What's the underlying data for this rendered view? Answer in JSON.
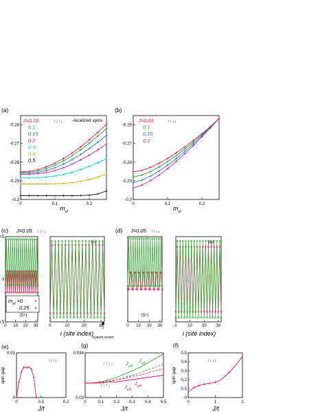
{
  "chart_data": [
    {
      "id": "a",
      "type": "line",
      "panel_label": "(a)",
      "xlabel": "m",
      "xlabel_sub": "el",
      "xlim": [
        0,
        0.25
      ],
      "ylim": [
        -0.3,
        -0.255
      ],
      "xticks": [
        "0",
        "0.1",
        "0.2"
      ],
      "yticks": [
        "-0.26",
        "-0.27",
        "-0.28",
        "-0.29",
        "-0.3"
      ],
      "legend_prefix": "J=",
      "annotation": "↑↓↑↓",
      "annotation_note": "localized spins",
      "x": [
        0,
        0.025,
        0.05,
        0.075,
        0.1,
        0.125,
        0.15,
        0.175,
        0.2,
        0.225,
        0.25
      ],
      "series": [
        {
          "name": "0.05",
          "color": "#e8174e",
          "values": [
            -0.2852,
            -0.2849,
            -0.284,
            -0.2825,
            -0.2805,
            -0.278,
            -0.275,
            -0.2717,
            -0.268,
            -0.264,
            -0.2597
          ]
        },
        {
          "name": "0.1",
          "color": "#2ca02c",
          "values": [
            -0.2856,
            -0.2854,
            -0.2847,
            -0.2834,
            -0.2816,
            -0.2793,
            -0.2765,
            -0.2733,
            -0.2698,
            -0.266,
            -0.262
          ]
        },
        {
          "name": "0.15",
          "color": "#1f77d4",
          "values": [
            -0.2861,
            -0.286,
            -0.2855,
            -0.2845,
            -0.283,
            -0.281,
            -0.2786,
            -0.2758,
            -0.2727,
            -0.2693,
            -0.2657
          ]
        },
        {
          "name": "0.2",
          "color": "#c020c0",
          "values": [
            -0.2866,
            -0.2865,
            -0.2862,
            -0.2856,
            -0.2845,
            -0.283,
            -0.2811,
            -0.2788,
            -0.2762,
            -0.2733,
            -0.2703
          ]
        },
        {
          "name": "0.3",
          "color": "#00c8d8",
          "values": [
            -0.2884,
            -0.2884,
            -0.2883,
            -0.288,
            -0.2874,
            -0.2866,
            -0.2855,
            -0.284,
            -0.2823,
            -0.2803,
            -0.2782
          ]
        },
        {
          "name": "0.4",
          "color": "#d4a000",
          "values": [
            -0.2917,
            -0.2917,
            -0.2917,
            -0.2917,
            -0.2916,
            -0.2914,
            -0.291,
            -0.2903,
            -0.2893,
            -0.288,
            -0.2862
          ]
        },
        {
          "name": "0.5",
          "color": "#000000",
          "values": [
            -0.298,
            -0.298,
            -0.298,
            -0.298,
            -0.298,
            -0.298,
            -0.298,
            -0.2979,
            -0.2977,
            -0.297,
            -0.2955
          ]
        }
      ]
    },
    {
      "id": "b",
      "type": "line",
      "panel_label": "(b)",
      "xlabel": "m",
      "xlabel_sub": "el",
      "xlim": [
        0,
        0.25
      ],
      "ylim": [
        -0.3,
        -0.255
      ],
      "xticks": [
        "0",
        "0.1",
        "0.2"
      ],
      "yticks": [
        "-0.26",
        "-0.27",
        "-0.28",
        "-0.29",
        "-0.3"
      ],
      "legend_prefix": "J=",
      "annotation": "↑↑↓↓",
      "x": [
        0,
        0.025,
        0.05,
        0.075,
        0.1,
        0.125,
        0.15,
        0.175,
        0.2,
        0.225,
        0.25
      ],
      "series": [
        {
          "name": "0.05",
          "color": "#e8174e",
          "values": [
            -0.2852,
            -0.2844,
            -0.2828,
            -0.2806,
            -0.278,
            -0.275,
            -0.2718,
            -0.2683,
            -0.2647,
            -0.2608,
            -0.2566
          ]
        },
        {
          "name": "0.1",
          "color": "#2ca02c",
          "values": [
            -0.288,
            -0.2869,
            -0.2851,
            -0.2826,
            -0.2797,
            -0.2765,
            -0.2729,
            -0.2692,
            -0.2652,
            -0.261,
            -0.2566
          ]
        },
        {
          "name": "0.15",
          "color": "#1f77d4",
          "values": [
            -0.291,
            -0.2896,
            -0.2875,
            -0.2848,
            -0.2816,
            -0.2781,
            -0.2742,
            -0.2701,
            -0.2658,
            -0.2613,
            -0.2566
          ]
        },
        {
          "name": "0.2",
          "color": "#c020c0",
          "values": [
            -0.294,
            -0.2923,
            -0.2899,
            -0.2869,
            -0.2835,
            -0.2797,
            -0.2755,
            -0.2711,
            -0.2664,
            -0.2616,
            -0.2566
          ]
        }
      ]
    },
    {
      "id": "c",
      "type": "line",
      "panel_label": "(c)",
      "title_text": "J=0.05",
      "annotation": "↑↓↑↓",
      "xlabel": "i (site index)",
      "xlim": [
        0,
        32
      ],
      "xticks": [
        "0",
        "10",
        "20",
        "30"
      ],
      "left": {
        "ylim": [
          -0.5,
          0.5
        ],
        "yticks": [
          "0.5",
          "0",
          "-0.5"
        ],
        "label": "⟨Sᶻ⟩",
        "series": [
          {
            "name": "m_el=0",
            "color": "#e8174e",
            "amp": 0.125,
            "center": -0.03,
            "period": 2
          },
          {
            "name": "m_el=0.25",
            "color": "#2ca02c",
            "amp": 0.27,
            "center": 0.2,
            "period": 2
          }
        ]
      },
      "right": {
        "ylim": [
          0,
          1
        ],
        "label": "⟨n⟩",
        "series": [
          {
            "name": "m_el=0",
            "color": "#e8174e",
            "amp": 0.4,
            "center": 0.5,
            "period": 2
          },
          {
            "name": "m_el=0.25",
            "color": "#2ca02c",
            "amp": 0.45,
            "center": 0.5,
            "period": 2
          }
        ]
      },
      "legend": {
        "label_main": "m",
        "label_sub": "el",
        "rows": [
          {
            "text": "=0",
            "mark": "+",
            "color": "#e8174e"
          },
          {
            "text": "0.25",
            "mark": "×",
            "color": "#2ca02c"
          }
        ]
      },
      "center_note": "system center"
    },
    {
      "id": "d",
      "type": "line",
      "panel_label": "(d)",
      "title_text": "J=0.05",
      "annotation": "↑↑↓↓",
      "xlabel": "i (site index)",
      "xlim": [
        0,
        32
      ],
      "xticks": [
        "0",
        "10",
        "20",
        "30"
      ],
      "left": {
        "ylim": [
          -0.5,
          0.5
        ],
        "label": "⟨Sᶻ⟩",
        "series": [
          {
            "name": "m_el=0",
            "color": "#e8174e",
            "amp": 0.1,
            "center": -0.02,
            "period": 4
          },
          {
            "name": "m_el=0.25",
            "color": "#2ca02c",
            "amp": 0.28,
            "center": 0.2,
            "period": 2
          }
        ]
      },
      "right": {
        "ylim": [
          0,
          1
        ],
        "label": "⟨n⟩",
        "series": [
          {
            "name": "m_el=0",
            "color": "#e8174e",
            "amp": 0.38,
            "center": 0.5,
            "period": 2
          },
          {
            "name": "m_el=0.25",
            "color": "#2ca02c",
            "amp": 0.45,
            "center": 0.5,
            "period": 2
          }
        ]
      }
    },
    {
      "id": "e",
      "type": "line",
      "panel_label": "(e)",
      "xlabel": "J/t",
      "ylabel": "spin gap",
      "xlim": [
        0,
        0.2
      ],
      "ylim": [
        0,
        0.01
      ],
      "xticks": [
        "0",
        "0.1",
        "0.2"
      ],
      "yticks": [
        "0.01",
        "0"
      ],
      "annotation": "↑↓↑↓",
      "x": [
        0,
        0.01,
        0.02,
        0.03,
        0.04,
        0.05,
        0.06,
        0.07,
        0.08
      ],
      "series": [
        {
          "name": "",
          "color": "#e8174e",
          "values": [
            0,
            0.0035,
            0.0058,
            0.0068,
            0.0067,
            0.0068,
            0.0064,
            0.0045,
            0
          ]
        }
      ]
    },
    {
      "id": "g",
      "type": "line",
      "panel_label": "(g)",
      "xlabel": "J/t",
      "xlim": [
        0,
        0.5
      ],
      "ylim": [
        0.03,
        0.034
      ],
      "xticks": [
        "0",
        "0.1",
        "0.2",
        "0.3",
        "0.4",
        "0.5"
      ],
      "yticks": [
        "0.034",
        "0.03"
      ],
      "labels": [
        {
          "text": "↑↑↓↓",
          "color": "#2ca02c"
        },
        {
          "text": "J",
          "sub": "eff",
          "color": "#2ca02c"
        },
        {
          "text": "J",
          "sub": "eff",
          "color": "#2ca02c"
        },
        {
          "text": "↑↓↑↓",
          "color": "#e8174e"
        },
        {
          "text": "J",
          "sub": "eff",
          "color": "#e8174e"
        },
        {
          "text": "J",
          "sub": "eff",
          "color": "#e8174e"
        }
      ],
      "x": [
        0,
        0.05,
        0.1,
        0.15,
        0.2,
        0.25,
        0.3,
        0.35,
        0.4,
        0.45,
        0.5
      ],
      "series": [
        {
          "name": "upper-green",
          "color": "#2ca02c",
          "dash": false,
          "values": [
            0.0313,
            0.0313,
            0.0314,
            0.0316,
            0.0318,
            0.0321,
            0.0324,
            0.0327,
            0.0331,
            0.0335,
            0.0339
          ]
        },
        {
          "name": "lower-green",
          "color": "#2ca02c",
          "dash": true,
          "values": [
            0.0313,
            0.0313,
            0.0314,
            0.0315,
            0.0316,
            0.0318,
            0.032,
            0.0322,
            0.0325,
            0.0327,
            0.033
          ]
        },
        {
          "name": "upper-red",
          "color": "#e8174e",
          "dash": true,
          "values": [
            0.0313,
            0.0313,
            0.0314,
            0.0314,
            0.0316,
            0.0317,
            0.0319,
            0.032,
            0.0322,
            0.0324,
            0.0326
          ]
        },
        {
          "name": "lower-red",
          "color": "#e8174e",
          "dash": false,
          "values": [
            0.0313,
            0.0313,
            0.0313,
            0.0314,
            0.0314,
            0.0315,
            0.0316,
            0.0317,
            0.0318,
            0.0319,
            0.032
          ]
        }
      ]
    },
    {
      "id": "f",
      "type": "line",
      "panel_label": "(f)",
      "xlabel": "J/t",
      "ylabel": "spin gap",
      "xlim": [
        0,
        2
      ],
      "ylim": [
        0,
        0.5
      ],
      "xticks": [
        "0",
        "1",
        "2"
      ],
      "yticks": [
        "0.5",
        "0.4",
        "0.3",
        "0.2",
        "0.1",
        "0"
      ],
      "annotation": "↑↑↓↓",
      "x": [
        0,
        0.2,
        0.4,
        0.6,
        0.8,
        1.0,
        1.2,
        1.4,
        1.6,
        1.8,
        2.0
      ],
      "series": [
        {
          "name": "",
          "color": "#e8174e",
          "values": [
            0.06,
            0.11,
            0.135,
            0.15,
            0.16,
            0.17,
            0.2,
            0.25,
            0.31,
            0.38,
            0.46
          ]
        }
      ],
      "markers_x": [
        0.2,
        0.4,
        0.6,
        0.8,
        1.0,
        1.5
      ]
    }
  ]
}
